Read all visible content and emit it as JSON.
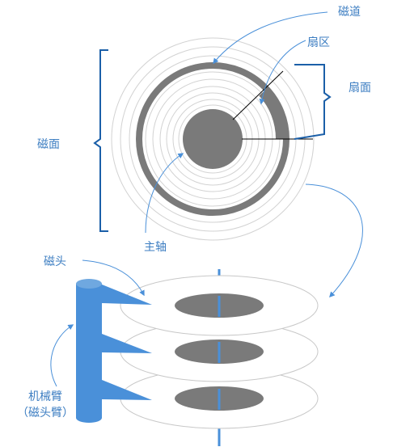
{
  "labels": {
    "track": "磁道",
    "sector": "扇区",
    "sector_face": "扇面",
    "platter_surface": "磁面",
    "spindle": "主轴",
    "head": "磁头",
    "arm_line1": "机械臂",
    "arm_line2": "（磁头臂）"
  },
  "colors": {
    "accent": "#4a90d9",
    "label": "#3d7ec2",
    "gray_fill": "#7a7a7a",
    "ring_stroke": "#d2d2d2",
    "platter_stroke": "#c8c8c8"
  }
}
